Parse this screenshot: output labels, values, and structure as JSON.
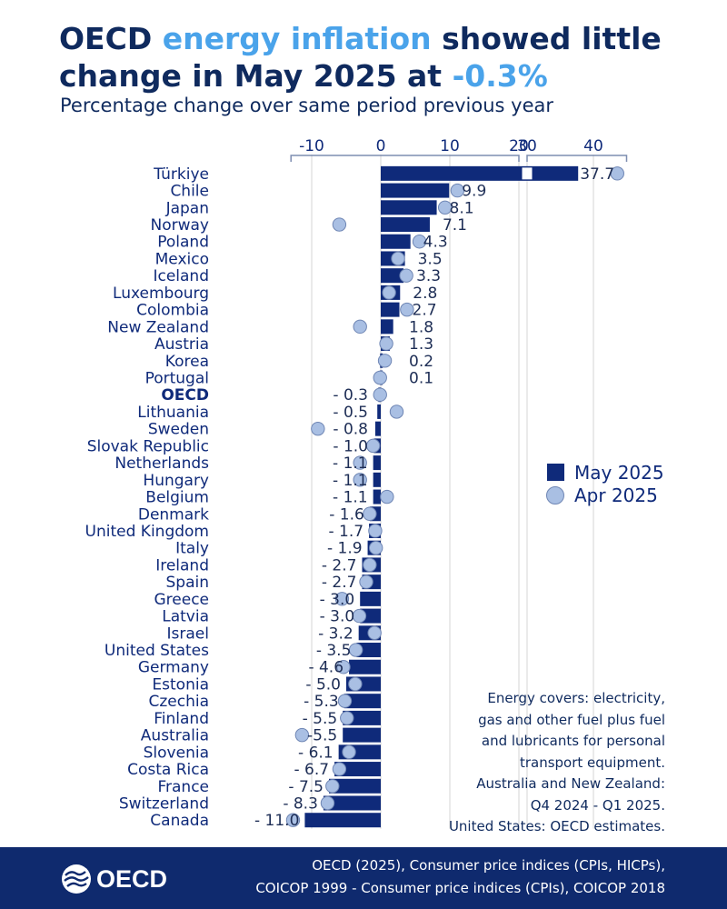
{
  "title": {
    "part1": "OECD ",
    "highlight1": "energy inflation",
    "part2": " showed little change in May 2025 at ",
    "highlight2": "-0.3%"
  },
  "subtitle": "Percentage change over same period previous year",
  "colors": {
    "bar": "#0f2a7a",
    "dot": "#a9bfe3",
    "accent": "#4aa3ea",
    "footer": "#0f2a6e",
    "grid": "#d6d6d6"
  },
  "chart_data": {
    "type": "bar",
    "orientation": "horizontal",
    "axis": {
      "segment1": {
        "range": [
          -13,
          20
        ],
        "ticks": [
          -10,
          0,
          10,
          20
        ]
      },
      "segment2": {
        "range": [
          30,
          45
        ],
        "ticks": [
          30,
          40
        ]
      }
    },
    "legend": [
      {
        "label": "May 2025",
        "marker": "square"
      },
      {
        "label": "Apr 2025",
        "marker": "circle"
      }
    ],
    "legend_position": "right",
    "rows": [
      {
        "country": "Türkiye",
        "may": 37.7,
        "apr": 43.6,
        "label": "37.7",
        "bold": false
      },
      {
        "country": "Chile",
        "may": 9.9,
        "apr": 11.1,
        "label": "9.9",
        "bold": false
      },
      {
        "country": "Japan",
        "may": 8.1,
        "apr": 9.3,
        "label": "8.1",
        "bold": false
      },
      {
        "country": "Norway",
        "may": 7.1,
        "apr": -6.0,
        "label": "7.1",
        "bold": false
      },
      {
        "country": "Poland",
        "may": 4.3,
        "apr": 5.6,
        "label": "4.3",
        "bold": false
      },
      {
        "country": "Mexico",
        "may": 3.5,
        "apr": 2.5,
        "label": "3.5",
        "bold": false
      },
      {
        "country": "Iceland",
        "may": 3.3,
        "apr": 3.7,
        "label": "3.3",
        "bold": false
      },
      {
        "country": "Luxembourg",
        "may": 2.8,
        "apr": 1.2,
        "label": "2.8",
        "bold": false
      },
      {
        "country": "Colombia",
        "may": 2.7,
        "apr": 3.8,
        "label": "2.7",
        "bold": false
      },
      {
        "country": "New Zealand",
        "may": 1.8,
        "apr": -3.0,
        "label": "1.8",
        "bold": false
      },
      {
        "country": "Austria",
        "may": 1.3,
        "apr": 0.8,
        "label": "1.3",
        "bold": false
      },
      {
        "country": "Korea",
        "may": 0.2,
        "apr": 0.6,
        "label": "0.2",
        "bold": false
      },
      {
        "country": "Portugal",
        "may": 0.1,
        "apr": -0.1,
        "label": "0.1",
        "bold": false
      },
      {
        "country": "OECD",
        "may": -0.3,
        "apr": -0.1,
        "label": "- 0.3",
        "bold": true
      },
      {
        "country": "Lithuania",
        "may": -0.5,
        "apr": 2.3,
        "label": "- 0.5",
        "bold": false
      },
      {
        "country": "Sweden",
        "may": -0.8,
        "apr": -9.1,
        "label": "- 0.8",
        "bold": false
      },
      {
        "country": "Slovak Republic",
        "may": -1.0,
        "apr": -1.1,
        "label": "- 1.0",
        "bold": false
      },
      {
        "country": "Netherlands",
        "may": -1.1,
        "apr": -3.0,
        "label": "- 1.1",
        "bold": false
      },
      {
        "country": "Hungary",
        "may": -1.1,
        "apr": -3.0,
        "label": "- 1.1",
        "bold": false
      },
      {
        "country": "Belgium",
        "may": -1.1,
        "apr": 0.9,
        "label": "- 1.1",
        "bold": false
      },
      {
        "country": "Denmark",
        "may": -1.6,
        "apr": -1.6,
        "label": "- 1.6",
        "bold": false
      },
      {
        "country": "United Kingdom",
        "may": -1.7,
        "apr": -0.8,
        "label": "- 1.7",
        "bold": false
      },
      {
        "country": "Italy",
        "may": -1.9,
        "apr": -0.7,
        "label": "- 1.9",
        "bold": false
      },
      {
        "country": "Ireland",
        "may": -2.7,
        "apr": -1.6,
        "label": "- 2.7",
        "bold": false
      },
      {
        "country": "Spain",
        "may": -2.7,
        "apr": -2.1,
        "label": "- 2.7",
        "bold": false
      },
      {
        "country": "Greece",
        "may": -3.0,
        "apr": -5.6,
        "label": "- 3.0",
        "bold": false
      },
      {
        "country": "Latvia",
        "may": -3.0,
        "apr": -3.1,
        "label": "- 3.0",
        "bold": false
      },
      {
        "country": "Israel",
        "may": -3.2,
        "apr": -0.9,
        "label": "- 3.2",
        "bold": false
      },
      {
        "country": "United States",
        "may": -3.5,
        "apr": -3.6,
        "label": "- 3.5",
        "bold": false
      },
      {
        "country": "Germany",
        "may": -4.6,
        "apr": -5.4,
        "label": "- 4.6",
        "bold": false
      },
      {
        "country": "Estonia",
        "may": -5.0,
        "apr": -3.7,
        "label": "- 5.0",
        "bold": false
      },
      {
        "country": "Czechia",
        "may": -5.3,
        "apr": -5.2,
        "label": "- 5.3",
        "bold": false
      },
      {
        "country": "Finland",
        "may": -5.5,
        "apr": -4.9,
        "label": "- 5.5",
        "bold": false
      },
      {
        "country": "Australia",
        "may": -5.5,
        "apr": -11.4,
        "label": "-5.5",
        "bold": false
      },
      {
        "country": "Slovenia",
        "may": -6.1,
        "apr": -4.6,
        "label": "- 6.1",
        "bold": false
      },
      {
        "country": "Costa Rica",
        "may": -6.7,
        "apr": -6.0,
        "label": "- 6.7",
        "bold": false
      },
      {
        "country": "France",
        "may": -7.5,
        "apr": -7.0,
        "label": "- 7.5",
        "bold": false
      },
      {
        "country": "Switzerland",
        "may": -8.3,
        "apr": -7.7,
        "label": "- 8.3",
        "bold": false
      },
      {
        "country": "Canada",
        "may": -11.0,
        "apr": -12.7,
        "label": "- 11.0",
        "bold": false
      }
    ]
  },
  "note_lines": [
    "Energy covers: electricity,",
    "gas and other fuel plus fuel",
    "and lubricants for personal",
    "transport equipment.",
    "Australia and New Zealand:",
    "Q4 2024 - Q1 2025.",
    "United States: OECD estimates."
  ],
  "footer": {
    "logo_text": "OECD",
    "source_line1": "OECD (2025), Consumer price indices (CPIs, HICPs),",
    "source_line2": "COICOP 1999 - Consumer price indices (CPIs), COICOP 2018"
  }
}
